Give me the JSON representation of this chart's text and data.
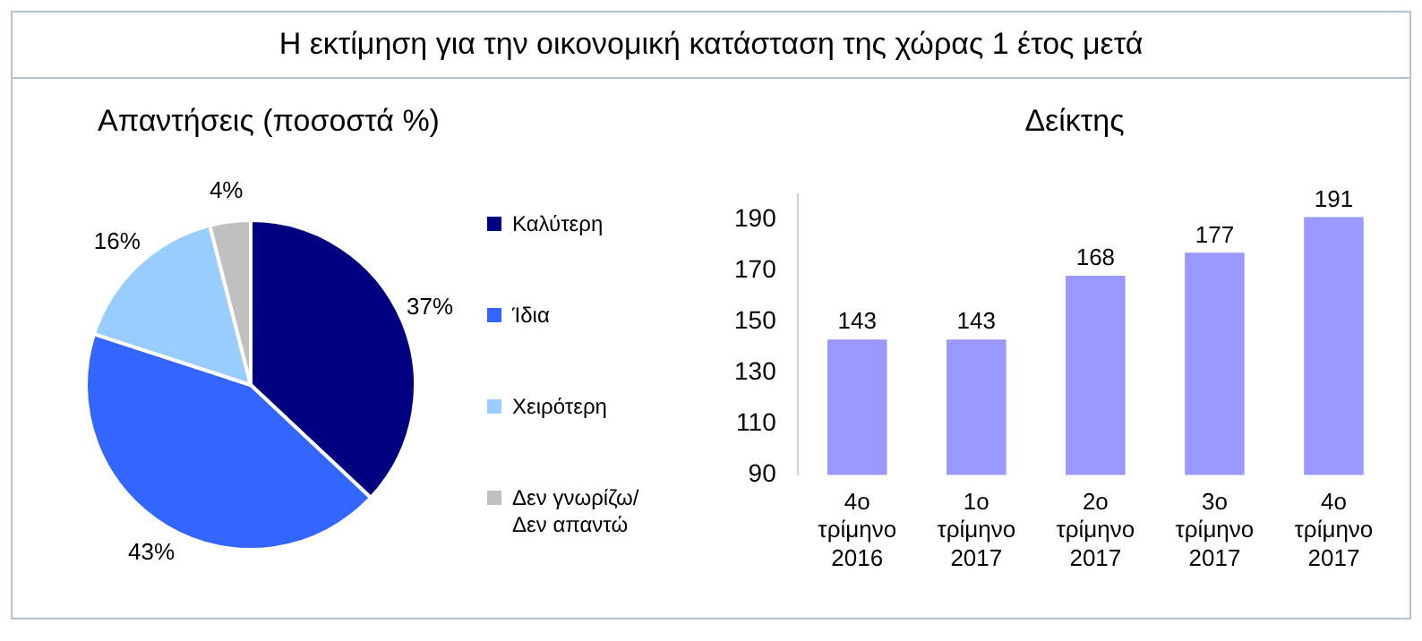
{
  "chart_data": [
    {
      "type": "pie",
      "title": "Η εκτίμηση για την οικονομική κατάσταση της χώρας 1 έτος μετά",
      "subtitle": "Απαντήσεις (ποσοστά %)",
      "categories": [
        "Καλύτερη",
        "Ίδια",
        "Χειρότερη",
        "Δεν γνωρίζω/ Δεν απαντώ"
      ],
      "values": [
        37,
        43,
        16,
        4
      ],
      "colors": [
        "#000080",
        "#3366ff",
        "#99ccff",
        "#c0c0c0"
      ],
      "value_labels": [
        "37%",
        "43%",
        "16%",
        "4%"
      ],
      "legend": "right"
    },
    {
      "type": "bar",
      "title": "Δείκτης",
      "categories": [
        "4ο τρίμηνο 2016",
        "1ο τρίμηνο 2017",
        "2ο τρίμηνο 2017",
        "3ο τρίμηνο 2017",
        "4ο τρίμηνο 2017"
      ],
      "values": [
        143,
        143,
        168,
        177,
        191
      ],
      "color": "#9999ff",
      "ylim": [
        90,
        200
      ],
      "yticks": [
        90,
        110,
        130,
        150,
        170,
        190
      ],
      "data_labels": true,
      "grid": false,
      "legend": false
    }
  ]
}
